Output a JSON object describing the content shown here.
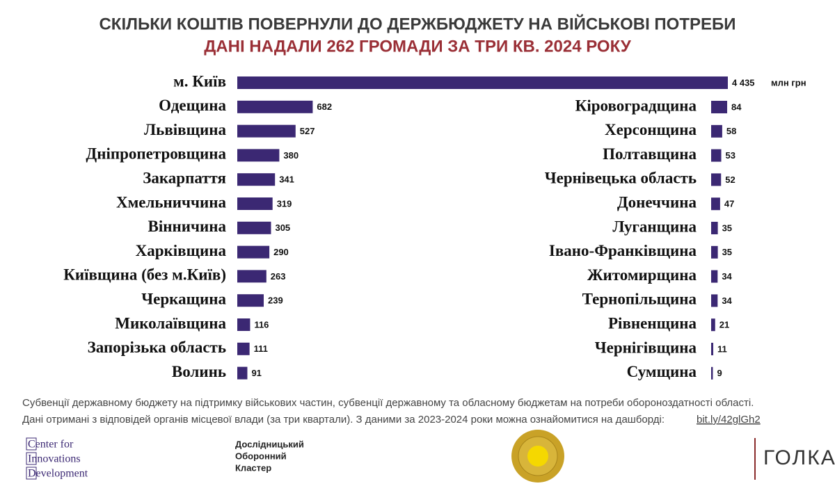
{
  "chart_data": [
    {
      "type": "bar",
      "title": "СКІЛЬКИ КОШТІВ ПОВЕРНУЛИ ДО ДЕРЖБЮДЖЕТУ НА ВІЙСЬКОВІ ПОТРЕБИ",
      "subtitle": "ДАНІ НАДАЛИ 262 ГРОМАДИ ЗА ТРИ КВ. 2024 РОКУ",
      "unit_label": "млн грн",
      "color": "#3b2873",
      "categories": [
        "м. Київ",
        "Одещина",
        "Львівщина",
        "Дніпропетровщина",
        "Закарпаття",
        "Хмельниччина",
        "Вінничина",
        "Харківщина",
        "Київщина (без м.Київ)",
        "Черкащина",
        "Миколаївщина",
        "Запорізька область",
        "Волинь"
      ],
      "values": [
        4435,
        682,
        527,
        380,
        341,
        319,
        305,
        290,
        263,
        239,
        116,
        111,
        91
      ],
      "value_labels": [
        "4 435",
        "682",
        "527",
        "380",
        "341",
        "319",
        "305",
        "290",
        "263",
        "239",
        "116",
        "111",
        "91"
      ]
    },
    {
      "type": "bar",
      "color": "#3b2873",
      "categories": [
        "Кіровоградщина",
        "Херсонщина",
        "Полтавщина",
        "Чернівецька область",
        "Донеччина",
        "Луганщина",
        "Івано-Франківщина",
        "Житомирщина",
        "Тернопільщина",
        "Рівненщина",
        "Чернігівщина",
        "Сумщина"
      ],
      "values": [
        84,
        58,
        53,
        52,
        47,
        35,
        35,
        34,
        34,
        21,
        11,
        9
      ]
    }
  ],
  "footnote": {
    "line1": "Субвенції державному бюджету на підтримку військових частин, субвенції державному та обласному бюджетам на потреби обороноздатності області.",
    "line2": "Дані отримані з відповідей органів місцевої влади (за три квартали). З даними за 2023-2024 роки можна ознайомитися на дашборді:",
    "link": "bit.ly/42glGh2"
  },
  "logos": {
    "cid": [
      "Center for",
      "Innovations",
      "Development"
    ],
    "cluster": [
      "Дослідницький",
      "Оборонний",
      "Кластер"
    ],
    "golka": "ГОЛКА"
  }
}
